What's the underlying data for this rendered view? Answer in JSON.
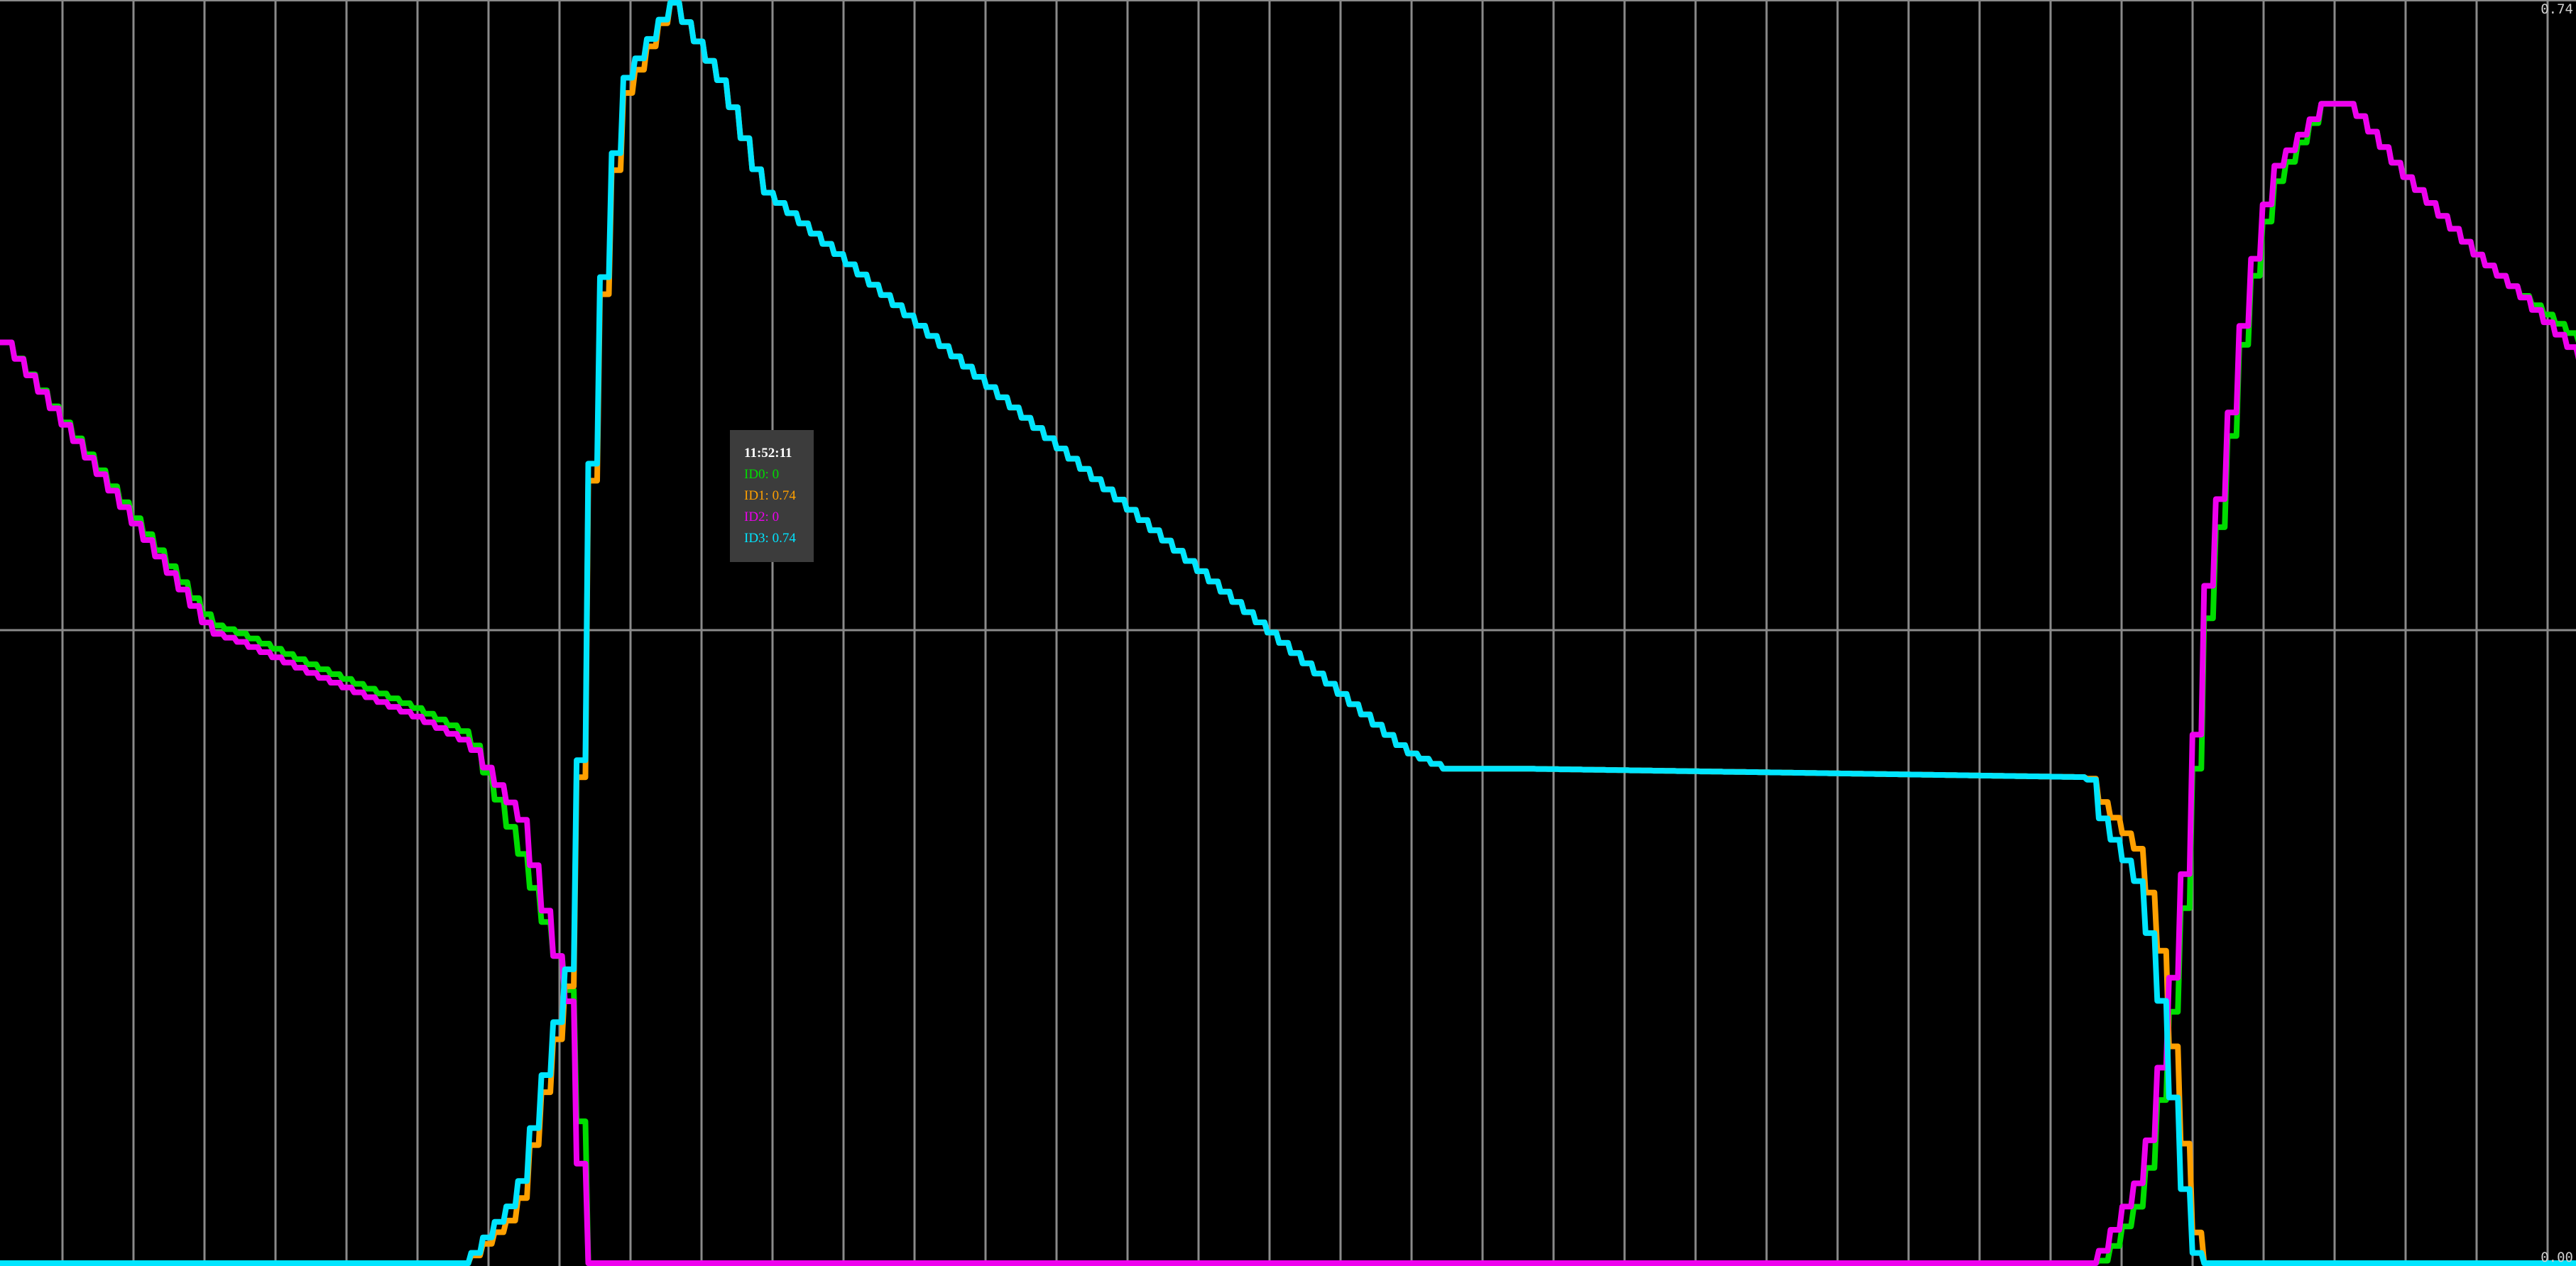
{
  "chart_data": {
    "type": "line",
    "y_axis": {
      "range": [
        0,
        0.74
      ],
      "tick_labels": [
        "0.74",
        "0.00"
      ],
      "position": "right"
    },
    "grid": true,
    "x": [
      0,
      0.08,
      0.09,
      0.12,
      0.16,
      0.18,
      0.2,
      0.2205,
      0.2235,
      0.2255,
      0.23,
      0.24,
      0.26,
      0.28,
      0.295,
      0.545,
      0.56,
      0.59,
      0.81,
      0.815,
      0.83,
      0.838,
      0.845,
      0.85,
      0.853,
      0.87,
      0.88,
      0.9,
      0.91,
      0.93,
      0.96,
      0.975,
      1.0
    ],
    "series": [
      {
        "name": "ID0",
        "color": "#00dd00",
        "values": [
          0.54,
          0.375,
          0.37,
          0.35,
          0.325,
          0.31,
          0.24,
          0.15,
          0.06,
          0.0,
          0.0,
          0.0,
          0.0,
          0.0,
          0.0,
          0.0,
          0.0,
          0.0,
          0.0,
          0.002,
          0.04,
          0.11,
          0.2,
          0.29,
          0.36,
          0.56,
          0.63,
          0.68,
          0.68,
          0.64,
          0.59,
          0.57,
          0.54
        ]
      },
      {
        "name": "ID1",
        "color": "#ffa000",
        "values": [
          0.0,
          0.0,
          0.0,
          0.0,
          0.0,
          0.0,
          0.03,
          0.17,
          0.27,
          0.34,
          0.52,
          0.68,
          0.74,
          0.69,
          0.63,
          0.3,
          0.29,
          0.29,
          0.285,
          0.27,
          0.24,
          0.18,
          0.09,
          0.03,
          0.0,
          0.0,
          0.0,
          0.0,
          0.0,
          0.0,
          0.0,
          0.0,
          0.0
        ]
      },
      {
        "name": "ID2",
        "color": "#ee00ee",
        "values": [
          0.54,
          0.37,
          0.365,
          0.345,
          0.32,
          0.305,
          0.26,
          0.14,
          0.03,
          0.0,
          0.0,
          0.0,
          0.0,
          0.0,
          0.0,
          0.0,
          0.0,
          0.0,
          0.0,
          0.01,
          0.055,
          0.13,
          0.22,
          0.31,
          0.38,
          0.57,
          0.64,
          0.68,
          0.68,
          0.64,
          0.59,
          0.57,
          0.53
        ]
      },
      {
        "name": "ID3",
        "color": "#00e5ff",
        "values": [
          0.0,
          0.0,
          0.0,
          0.0,
          0.0,
          0.0,
          0.04,
          0.18,
          0.28,
          0.35,
          0.53,
          0.69,
          0.74,
          0.69,
          0.63,
          0.3,
          0.29,
          0.29,
          0.285,
          0.26,
          0.22,
          0.15,
          0.06,
          0.01,
          0.0,
          0.0,
          0.0,
          0.0,
          0.0,
          0.0,
          0.0,
          0.0,
          0.0
        ]
      }
    ]
  },
  "tooltip": {
    "time": "11:52:11",
    "lines": [
      {
        "label": "ID0: 0",
        "color": "#00dd00"
      },
      {
        "label": "ID1: 0.74",
        "color": "#ffa000"
      },
      {
        "label": "ID2: 0",
        "color": "#ee00ee"
      },
      {
        "label": "ID3: 0.74",
        "color": "#00e5ff"
      }
    ]
  }
}
